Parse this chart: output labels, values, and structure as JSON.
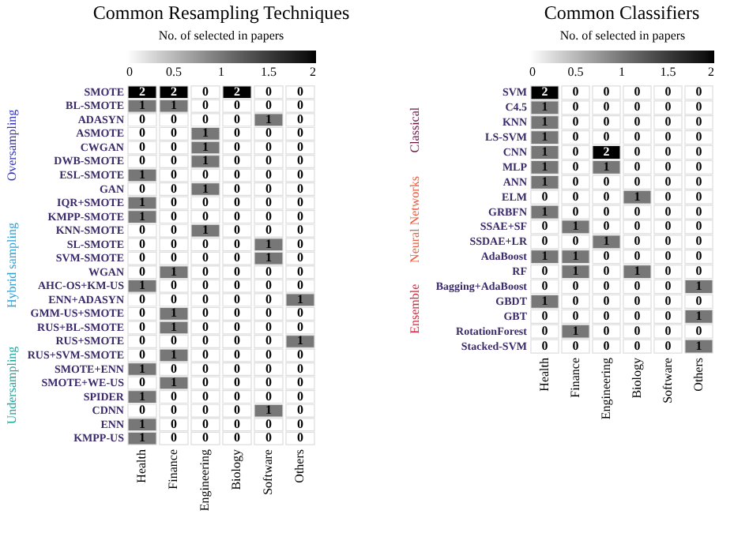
{
  "chart_data": [
    {
      "type": "heatmap",
      "title": "Common Resampling Techniques",
      "legend_title": "No. of selected in papers",
      "data_labels": true,
      "categories": [
        "Health",
        "Finance",
        "Engineering",
        "Biology",
        "Software",
        "Others"
      ],
      "y_categories": [
        "SMOTE",
        "BL-SMOTE",
        "ADASYN",
        "ASMOTE",
        "CWGAN",
        "DWB-SMOTE",
        "ESL-SMOTE",
        "GAN",
        "IQR+SMOTE",
        "KMPP-SMOTE",
        "KNN-SMOTE",
        "SL-SMOTE",
        "SVM-SMOTE",
        "WGAN",
        "AHC-OS+KM-US",
        "ENN+ADASYN",
        "GMM-US+SMOTE",
        "RUS+BL-SMOTE",
        "RUS+SMOTE",
        "RUS+SVM-SMOTE",
        "SMOTE+ENN",
        "SMOTE+WE-US",
        "SPIDER",
        "CDNN",
        "ENN",
        "KMPP-US"
      ],
      "cells": [
        [
          2,
          2,
          0,
          2,
          0,
          0
        ],
        [
          1,
          1,
          0,
          0,
          0,
          0
        ],
        [
          0,
          0,
          0,
          0,
          1,
          0
        ],
        [
          0,
          0,
          1,
          0,
          0,
          0
        ],
        [
          0,
          0,
          1,
          0,
          0,
          0
        ],
        [
          0,
          0,
          1,
          0,
          0,
          0
        ],
        [
          1,
          0,
          0,
          0,
          0,
          0
        ],
        [
          0,
          0,
          1,
          0,
          0,
          0
        ],
        [
          1,
          0,
          0,
          0,
          0,
          0
        ],
        [
          1,
          0,
          0,
          0,
          0,
          0
        ],
        [
          0,
          0,
          1,
          0,
          0,
          0
        ],
        [
          0,
          0,
          0,
          0,
          1,
          0
        ],
        [
          0,
          0,
          0,
          0,
          1,
          0
        ],
        [
          0,
          1,
          0,
          0,
          0,
          0
        ],
        [
          1,
          0,
          0,
          0,
          0,
          0
        ],
        [
          0,
          0,
          0,
          0,
          0,
          1
        ],
        [
          0,
          1,
          0,
          0,
          0,
          0
        ],
        [
          0,
          1,
          0,
          0,
          0,
          0
        ],
        [
          0,
          0,
          0,
          0,
          0,
          1
        ],
        [
          0,
          1,
          0,
          0,
          0,
          0
        ],
        [
          1,
          0,
          0,
          0,
          0,
          0
        ],
        [
          0,
          1,
          0,
          0,
          0,
          0
        ],
        [
          1,
          0,
          0,
          0,
          0,
          0
        ],
        [
          0,
          0,
          0,
          0,
          1,
          0
        ],
        [
          1,
          0,
          0,
          0,
          0,
          0
        ],
        [
          1,
          0,
          0,
          0,
          0,
          0
        ]
      ],
      "clim": [
        0,
        2
      ],
      "cticks": [
        0,
        0.5,
        1,
        1.5,
        2
      ],
      "annotations": [
        "Oversampling",
        "Hybrid sampling",
        "Undersampling"
      ]
    },
    {
      "type": "heatmap",
      "title": "Common Classifiers",
      "legend_title": "No. of selected in papers",
      "data_labels": true,
      "categories": [
        "Health",
        "Finance",
        "Engineering",
        "Biology",
        "Software",
        "Others"
      ],
      "y_categories": [
        "SVM",
        "C4.5",
        "KNN",
        "LS-SVM",
        "CNN",
        "MLP",
        "ANN",
        "ELM",
        "GRBFN",
        "SSAE+SF",
        "SSDAE+LR",
        "AdaBoost",
        "RF",
        "Bagging+AdaBoost",
        "GBDT",
        "GBT",
        "RotationForest",
        "Stacked-SVM"
      ],
      "cells": [
        [
          2,
          0,
          0,
          0,
          0,
          0
        ],
        [
          1,
          0,
          0,
          0,
          0,
          0
        ],
        [
          1,
          0,
          0,
          0,
          0,
          0
        ],
        [
          1,
          0,
          0,
          0,
          0,
          0
        ],
        [
          1,
          0,
          2,
          0,
          0,
          0
        ],
        [
          1,
          0,
          1,
          0,
          0,
          0
        ],
        [
          1,
          0,
          0,
          0,
          0,
          0
        ],
        [
          0,
          0,
          0,
          1,
          0,
          0
        ],
        [
          1,
          0,
          0,
          0,
          0,
          0
        ],
        [
          0,
          1,
          0,
          0,
          0,
          0
        ],
        [
          0,
          0,
          1,
          0,
          0,
          0
        ],
        [
          1,
          1,
          0,
          0,
          0,
          0
        ],
        [
          0,
          1,
          0,
          1,
          0,
          0
        ],
        [
          0,
          0,
          0,
          0,
          0,
          1
        ],
        [
          1,
          0,
          0,
          0,
          0,
          0
        ],
        [
          0,
          0,
          0,
          0,
          0,
          1
        ],
        [
          0,
          1,
          0,
          0,
          0,
          0
        ],
        [
          0,
          0,
          0,
          0,
          0,
          1
        ]
      ],
      "clim": [
        0,
        2
      ],
      "cticks": [
        0,
        0.5,
        1,
        1.5,
        2
      ],
      "annotations": [
        "Classical",
        "Neural Networks",
        "Ensemble"
      ]
    }
  ]
}
